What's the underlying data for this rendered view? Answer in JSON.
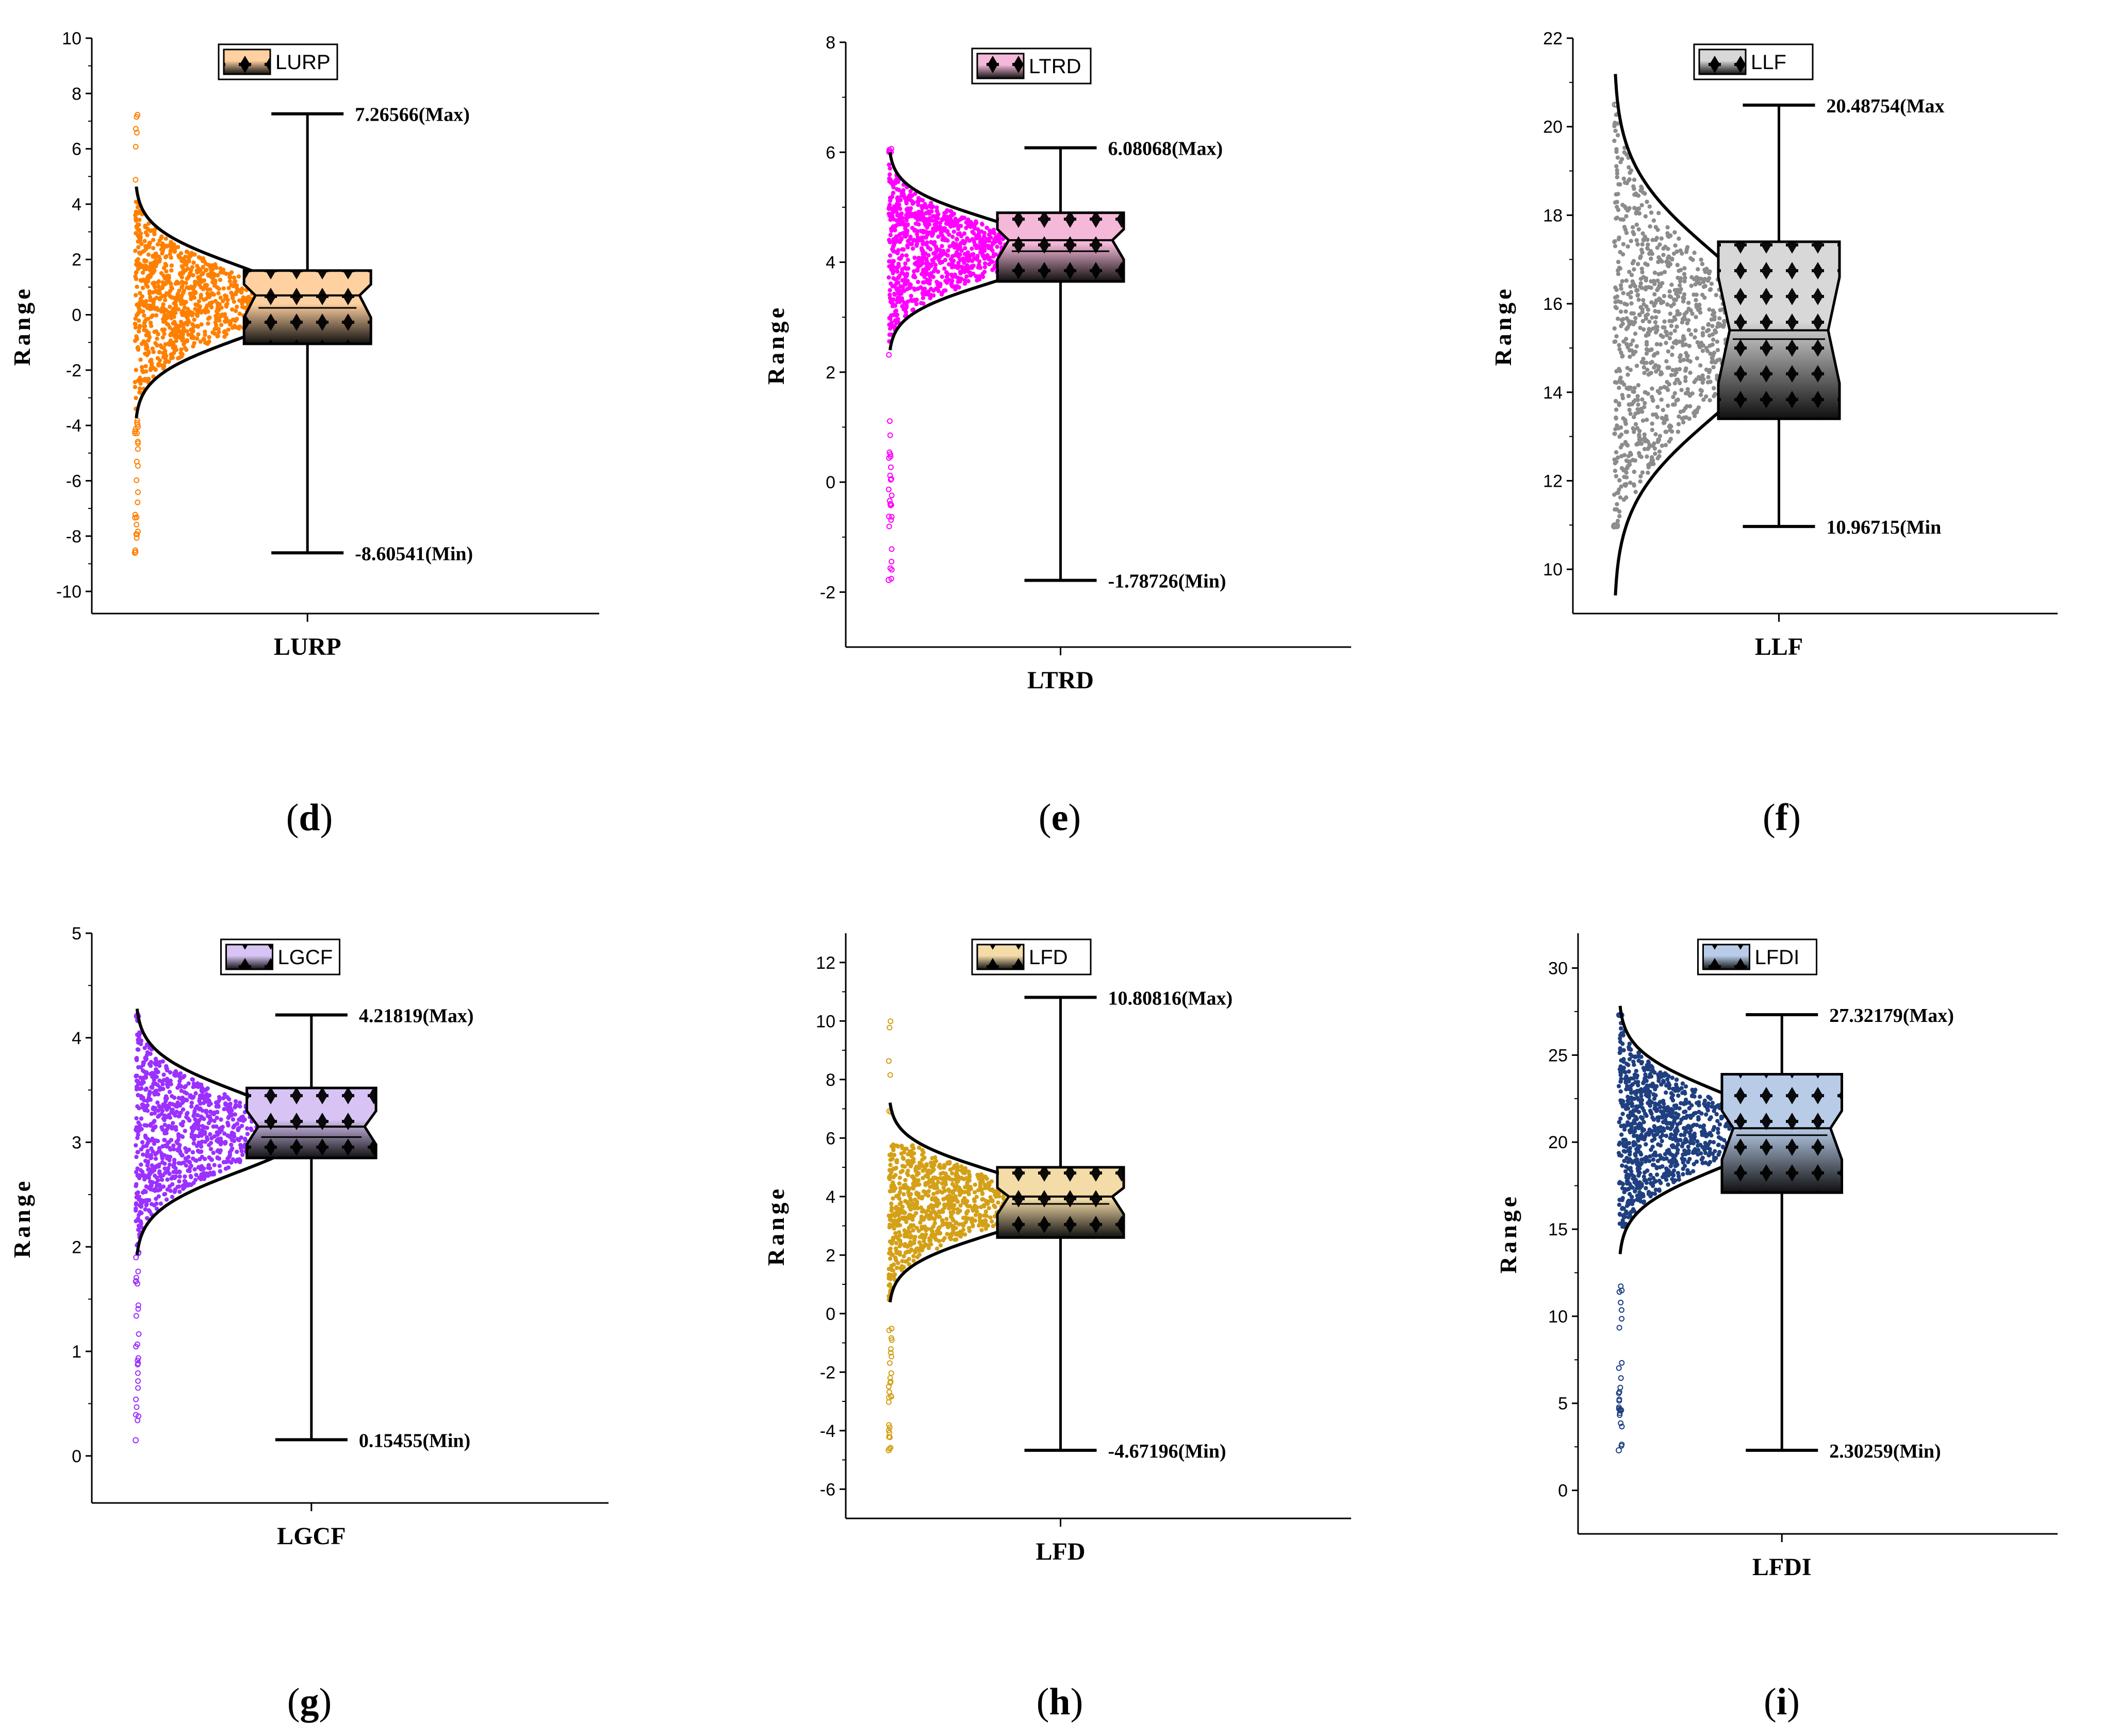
{
  "chart_data": [
    {
      "panel": "d",
      "caption_letter": "d",
      "type": "box",
      "category": "LURP",
      "legend": "LURP",
      "ylabel": "Range",
      "color": "#ff8000",
      "box_top": "#ffd0a0",
      "box_bot": "#101010",
      "ylim": [
        -10.8,
        10
      ],
      "yticks": [
        -10,
        -8,
        -6,
        -4,
        -2,
        0,
        2,
        4,
        6,
        8,
        10
      ],
      "max": 7.26566,
      "min": -8.60541,
      "q1": -1.05,
      "q3": 1.6,
      "median": 0.7,
      "mean": 0.25,
      "notch_low": -0.1,
      "notch_high": 1.1,
      "peak": 0.45,
      "sd": 1.35,
      "cloud_low": -3.6,
      "cloud_high": 4.4,
      "out_low": -8.6,
      "out_high": 7.26,
      "max_label": "7.26566(Max)",
      "min_label": "-8.60541(Min)"
    },
    {
      "panel": "e",
      "caption_letter": "e",
      "type": "box",
      "category": "LTRD",
      "legend": "LTRD",
      "ylabel": "Range",
      "color": "#ff00ff",
      "box_top": "#f4b8d8",
      "box_bot": "#101010",
      "ylim": [
        -3,
        8
      ],
      "yticks": [
        -2,
        0,
        2,
        4,
        6,
        8
      ],
      "max": 6.08068,
      "min": -1.78726,
      "q1": 3.65,
      "q3": 4.9,
      "median": 4.4,
      "mean": 4.2,
      "notch_low": 4.05,
      "notch_high": 4.6,
      "peak": 4.2,
      "sd": 0.58,
      "cloud_low": 2.4,
      "cloud_high": 6.0,
      "out_low": -1.78,
      "out_high": 6.08,
      "max_label": "6.08068(Max)",
      "min_label": "-1.78726(Min)"
    },
    {
      "panel": "f",
      "caption_letter": "f",
      "type": "box",
      "category": "LLF",
      "legend": "LLF",
      "ylabel": "Range",
      "color": "#8c8c8c",
      "box_top": "#d8d8d8",
      "box_bot": "#101010",
      "ylim": [
        9,
        22
      ],
      "yticks": [
        10,
        12,
        14,
        16,
        18,
        20,
        22
      ],
      "max": 20.48754,
      "min": 10.96715,
      "q1": 13.4,
      "q3": 17.4,
      "median": 15.4,
      "mean": 15.2,
      "notch_low": 14.2,
      "notch_high": 16.6,
      "peak": 15.3,
      "sd": 1.9,
      "cloud_low": 11.0,
      "cloud_high": 20.5,
      "out_low": 10.97,
      "out_high": 20.49,
      "max_label": "20.48754(Max",
      "min_label": "10.96715(Min"
    },
    {
      "panel": "g",
      "caption_letter": "g",
      "type": "box",
      "category": "LGCF",
      "legend": "LGCF",
      "ylabel": "Range",
      "color": "#9b30ff",
      "box_top": "#d8c4f4",
      "box_bot": "#101010",
      "ylim": [
        -0.45,
        5
      ],
      "yticks": [
        0,
        1,
        2,
        3,
        4,
        5
      ],
      "max": 4.21819,
      "min": 0.15455,
      "q1": 2.85,
      "q3": 3.52,
      "median": 3.15,
      "mean": 3.05,
      "notch_low": 2.98,
      "notch_high": 3.3,
      "peak": 3.1,
      "sd": 0.38,
      "cloud_low": 2.0,
      "cloud_high": 4.2,
      "out_low": 0.15,
      "out_high": 4.22,
      "max_label": "4.21819(Max)",
      "min_label": "0.15455(Min)"
    },
    {
      "panel": "h",
      "caption_letter": "h",
      "type": "box",
      "category": "LFD",
      "legend": "LFD",
      "ylabel": "Range",
      "color": "#d4a017",
      "box_top": "#f4dca8",
      "box_bot": "#101010",
      "ylim": [
        -7,
        13
      ],
      "yticks": [
        -6,
        -4,
        -2,
        0,
        2,
        4,
        6,
        8,
        10,
        12
      ],
      "max": 10.80816,
      "min": -4.67196,
      "q1": 2.6,
      "q3": 5.0,
      "median": 4.0,
      "mean": 3.75,
      "notch_low": 3.4,
      "notch_high": 4.3,
      "peak": 3.8,
      "sd": 1.1,
      "cloud_low": -0.5,
      "cloud_high": 5.8,
      "out_low": -4.67,
      "out_high": 10.81,
      "max_label": "10.80816(Max)",
      "min_label": "-4.67196(Min)"
    },
    {
      "panel": "i",
      "caption_letter": "i",
      "type": "box",
      "category": "LFDI",
      "legend": "LFDI",
      "ylabel": "Range",
      "color": "#1f3f80",
      "box_top": "#b8cce8",
      "box_bot": "#101010",
      "ylim": [
        -2.5,
        32
      ],
      "yticks": [
        0,
        5,
        10,
        15,
        20,
        25,
        30
      ],
      "max": 27.32179,
      "min": 2.30259,
      "q1": 17.1,
      "q3": 23.9,
      "median": 20.8,
      "mean": 20.4,
      "notch_low": 19.0,
      "notch_high": 21.8,
      "peak": 20.7,
      "sd": 2.3,
      "cloud_low": 12.0,
      "cloud_high": 27.3,
      "out_low": 2.3,
      "out_high": 27.3,
      "max_label": "27.32179(Max)",
      "min_label": "2.30259(Min)"
    }
  ]
}
